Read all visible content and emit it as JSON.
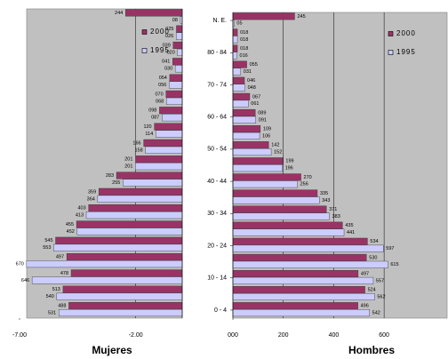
{
  "chart_data": [
    {
      "type": "bar",
      "orientation": "horizontal",
      "title": "Mujeres",
      "xlim": [
        -700,
        0
      ],
      "xticks": [
        {
          "value": -700,
          "label": "-7.00"
        },
        {
          "value": -200,
          "label": "-2.00"
        }
      ],
      "grid": true,
      "legend": "upper right",
      "series": [
        {
          "name": "2000",
          "color": "#993366",
          "values": [
            -244,
            -25,
            -39,
            -41,
            -54,
            -70,
            -98,
            -120,
            -166,
            -201,
            -283,
            -359,
            -403,
            -455,
            -545,
            -497,
            -478,
            -513,
            -488
          ],
          "value_labels": [
            "244",
            "025",
            "039",
            "041",
            "054",
            "070",
            "098",
            "120",
            "166",
            "201",
            "283",
            "359",
            "403",
            "455",
            "545",
            "497",
            "478",
            "513",
            "488"
          ]
        },
        {
          "name": "1995",
          "color": "#ccccff",
          "values": [
            -8,
            -26,
            -20,
            -30,
            -56,
            -68,
            -87,
            -114,
            -158,
            -201,
            -255,
            -364,
            -413,
            -452,
            -553,
            -670,
            -646,
            -540,
            -531
          ],
          "value_labels": [
            "08",
            "026",
            "020",
            "030",
            "056",
            "068",
            "087",
            "114",
            "158",
            "201",
            "255",
            "364",
            "413",
            "452",
            "553",
            "670",
            "646",
            "540",
            "531"
          ]
        }
      ]
    },
    {
      "type": "bar",
      "orientation": "horizontal",
      "title": "Hombres",
      "categories": [
        "N. E.",
        null,
        "80 - 84",
        null,
        "70 - 74",
        null,
        "60 - 64",
        null,
        "50 - 54",
        null,
        "40 - 44",
        null,
        "30 - 34",
        null,
        "20 - 24",
        null,
        "10 - 14",
        null,
        "0 - 4"
      ],
      "xlim": [
        0,
        850
      ],
      "xticks": [
        {
          "value": 0,
          "label": "000"
        },
        200,
        400,
        600
      ],
      "grid": true,
      "legend": "upper right",
      "series": [
        {
          "name": "2000",
          "color": "#993366",
          "values": [
            245,
            18,
            18,
            55,
            46,
            67,
            89,
            109,
            142,
            199,
            270,
            335,
            371,
            435,
            534,
            530,
            497,
            524,
            496
          ],
          "value_labels": [
            "245",
            "018",
            "018",
            "055",
            "046",
            "067",
            "089",
            "109",
            "142",
            "199",
            "270",
            "335",
            "371",
            "435",
            "534",
            "530",
            "497",
            "524",
            "496"
          ]
        },
        {
          "name": "1995",
          "color": "#ccccff",
          "values": [
            5,
            18,
            16,
            31,
            48,
            61,
            91,
            106,
            152,
            196,
            256,
            343,
            383,
            441,
            597,
            615,
            557,
            562,
            542
          ],
          "value_labels": [
            "05",
            "018",
            "016",
            "031",
            "048",
            "061",
            "091",
            "106",
            "152",
            "196",
            "256",
            "343",
            "383",
            "441",
            "597",
            "615",
            "557",
            "562",
            "542"
          ]
        }
      ]
    }
  ]
}
